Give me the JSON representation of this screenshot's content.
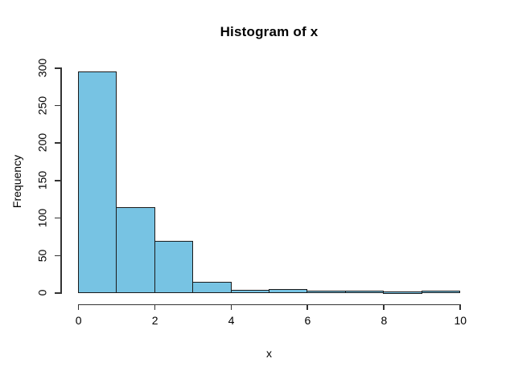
{
  "chart_data": {
    "type": "bar",
    "subtype": "histogram",
    "title": "Histogram of x",
    "xlabel": "x",
    "ylabel": "Frequency",
    "bin_breaks": [
      0,
      1,
      2,
      3,
      4,
      5,
      6,
      7,
      8,
      9,
      10
    ],
    "counts": [
      294,
      113,
      68,
      13,
      2,
      4,
      1,
      1,
      0,
      1
    ],
    "x_ticks": [
      0,
      2,
      4,
      6,
      8,
      10
    ],
    "y_ticks": [
      0,
      50,
      100,
      150,
      200,
      250,
      300
    ],
    "xlim": [
      0,
      10
    ],
    "ylim": [
      0,
      300
    ],
    "legend": null,
    "grid": false,
    "colors": {
      "bar_fill": "#77C3E3",
      "bar_border": "#1b1b1b",
      "axis": "#333333",
      "text": "#000000",
      "background": "#FFFFFF"
    }
  }
}
